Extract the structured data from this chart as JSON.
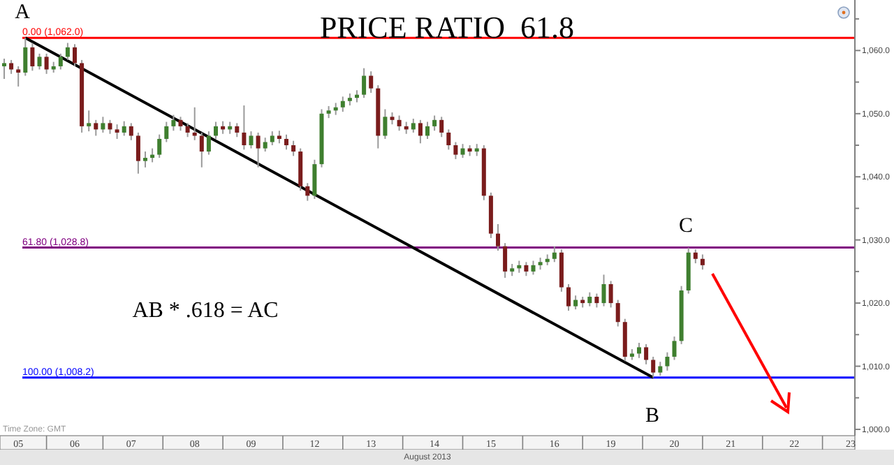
{
  "chart_data": {
    "type": "candlestick",
    "title": "PRICE RATIO  61.8",
    "xlabel": "August 2013",
    "categories": [
      null,
      null,
      "05",
      null,
      null,
      null,
      null,
      null,
      null,
      null,
      "06",
      null,
      null,
      null,
      null,
      null,
      null,
      null,
      "07",
      null,
      null,
      null,
      null,
      null,
      null,
      null,
      null,
      "08",
      null,
      null,
      null,
      null,
      null,
      null,
      null,
      "09",
      null,
      null,
      null,
      null,
      null,
      null,
      null,
      null,
      "12",
      null,
      null,
      null,
      null,
      null,
      null,
      null,
      "13",
      null,
      null,
      null,
      null,
      null,
      null,
      null,
      null,
      "14",
      null,
      null,
      null,
      null,
      null,
      null,
      null,
      "15",
      null,
      null,
      null,
      null,
      null,
      null,
      null,
      null,
      "16",
      null,
      null,
      null,
      null,
      null,
      null,
      null,
      "19",
      null,
      null,
      null,
      null,
      null,
      null,
      null,
      null,
      "20",
      null,
      null,
      null,
      null,
      null,
      null,
      null,
      "21",
      null,
      null,
      null,
      null,
      null,
      null,
      null,
      null,
      "22",
      null,
      null,
      null,
      null,
      null,
      null,
      null,
      "23"
    ],
    "ohlc": [
      [
        1057.5,
        1058.7,
        1055.5,
        1058.0
      ],
      [
        1058,
        1058.5,
        1056.3,
        1057
      ],
      [
        1057,
        1057.5,
        1054.3,
        1056.5
      ],
      [
        1056.5,
        1062,
        1056,
        1060.5
      ],
      [
        1060.5,
        1061.2,
        1056.8,
        1057.5
      ],
      [
        1057.5,
        1059.5,
        1057,
        1059
      ],
      [
        1059,
        1059.5,
        1056.3,
        1057
      ],
      [
        1057,
        1058.2,
        1056.5,
        1057.5
      ],
      [
        1057.5,
        1059.5,
        1057,
        1059
      ],
      [
        1059,
        1061.2,
        1058.5,
        1060.5
      ],
      [
        1060.5,
        1061,
        1057.5,
        1058
      ],
      [
        1058,
        1058.5,
        1047,
        1048
      ],
      [
        1048,
        1050.5,
        1047.2,
        1048.5
      ],
      [
        1048.5,
        1049,
        1046.5,
        1047.5
      ],
      [
        1047.5,
        1049.5,
        1047,
        1048.5
      ],
      [
        1048.5,
        1049,
        1046.8,
        1047.5
      ],
      [
        1047.5,
        1048.3,
        1046,
        1047
      ],
      [
        1047,
        1048.8,
        1046.5,
        1048
      ],
      [
        1048,
        1048.5,
        1045.8,
        1046.5
      ],
      [
        1046.5,
        1047,
        1040.5,
        1042.5
      ],
      [
        1042.5,
        1044,
        1041.5,
        1043
      ],
      [
        1043,
        1044.5,
        1042.3,
        1043.5
      ],
      [
        1043.5,
        1046.7,
        1043,
        1046
      ],
      [
        1046,
        1048.7,
        1045.5,
        1048
      ],
      [
        1048,
        1049.8,
        1047.3,
        1049
      ],
      [
        1049,
        1049.5,
        1047.3,
        1048
      ],
      [
        1048,
        1048.5,
        1046.3,
        1047
      ],
      [
        1047,
        1051,
        1045.8,
        1046.5
      ],
      [
        1046.5,
        1047,
        1041.5,
        1044
      ],
      [
        1044,
        1047.2,
        1043.5,
        1046.5
      ],
      [
        1046.5,
        1048.7,
        1046,
        1048
      ],
      [
        1048,
        1048.8,
        1046.8,
        1047.5
      ],
      [
        1047.5,
        1048.7,
        1046.8,
        1048
      ],
      [
        1048,
        1048.5,
        1046.3,
        1047
      ],
      [
        1047,
        1051.3,
        1044.3,
        1045
      ],
      [
        1045,
        1047.2,
        1044.5,
        1046.5
      ],
      [
        1046.5,
        1047,
        1041.5,
        1044.5
      ],
      [
        1044.5,
        1046.2,
        1044,
        1045.5
      ],
      [
        1045.5,
        1047.2,
        1045,
        1046.5
      ],
      [
        1046.5,
        1047.3,
        1045.3,
        1046
      ],
      [
        1046,
        1046.7,
        1044.3,
        1045
      ],
      [
        1045,
        1045.7,
        1043.3,
        1044
      ],
      [
        1044,
        1044.5,
        1037.8,
        1038.5
      ],
      [
        1038.5,
        1039,
        1036.2,
        1037
      ],
      [
        1037,
        1042.7,
        1036.5,
        1042
      ],
      [
        1042,
        1050.7,
        1041.5,
        1050
      ],
      [
        1050,
        1051.2,
        1049.3,
        1050.5
      ],
      [
        1050.5,
        1051.7,
        1049.8,
        1051
      ],
      [
        1051,
        1052.7,
        1050.3,
        1052
      ],
      [
        1052,
        1053.2,
        1051.3,
        1052.5
      ],
      [
        1052.5,
        1053.7,
        1051.8,
        1053
      ],
      [
        1053,
        1057.2,
        1052.5,
        1056
      ],
      [
        1056,
        1056.7,
        1053.3,
        1054
      ],
      [
        1054,
        1054.5,
        1044.5,
        1046.5
      ],
      [
        1046.5,
        1050.7,
        1046,
        1049.5
      ],
      [
        1049.5,
        1050.2,
        1048.3,
        1049
      ],
      [
        1049,
        1049.7,
        1047.3,
        1048
      ],
      [
        1048,
        1048.7,
        1046.8,
        1047.5
      ],
      [
        1047.5,
        1049.2,
        1047,
        1048.5
      ],
      [
        1048.5,
        1049,
        1045.3,
        1046.5
      ],
      [
        1046.5,
        1048.7,
        1046,
        1048
      ],
      [
        1048,
        1049.7,
        1047.3,
        1049
      ],
      [
        1049,
        1049.5,
        1046.3,
        1047
      ],
      [
        1047,
        1047.5,
        1044.3,
        1045
      ],
      [
        1045,
        1045.5,
        1042.8,
        1043.5
      ],
      [
        1043.5,
        1045.2,
        1043,
        1044.5
      ],
      [
        1044.5,
        1045,
        1043.3,
        1044
      ],
      [
        1044,
        1045.2,
        1043.3,
        1044.5
      ],
      [
        1044.5,
        1045,
        1036.3,
        1037
      ],
      [
        1037,
        1037.5,
        1030.3,
        1031
      ],
      [
        1031,
        1032.5,
        1028.3,
        1029
      ],
      [
        1029,
        1029.5,
        1024,
        1025
      ],
      [
        1025,
        1026.2,
        1024.3,
        1025.5
      ],
      [
        1025.5,
        1026.7,
        1024.8,
        1026
      ],
      [
        1026,
        1026.5,
        1024.3,
        1025
      ],
      [
        1025,
        1026.7,
        1024.5,
        1026
      ],
      [
        1026,
        1027.2,
        1025.3,
        1026.5
      ],
      [
        1026.5,
        1027.7,
        1026,
        1027
      ],
      [
        1027,
        1029,
        1026.5,
        1028
      ],
      [
        1028,
        1028.5,
        1021.8,
        1022.5
      ],
      [
        1022.5,
        1023,
        1018.8,
        1019.5
      ],
      [
        1019.5,
        1021.2,
        1019,
        1020.5
      ],
      [
        1020.5,
        1021,
        1019.3,
        1020
      ],
      [
        1020,
        1021.7,
        1019.5,
        1021
      ],
      [
        1021,
        1021.5,
        1019.3,
        1020
      ],
      [
        1020,
        1024.5,
        1019.5,
        1023
      ],
      [
        1023,
        1023.5,
        1019.3,
        1020
      ],
      [
        1020,
        1020.5,
        1016.3,
        1017
      ],
      [
        1017,
        1017.5,
        1010.8,
        1011.5
      ],
      [
        1011.5,
        1012.7,
        1011,
        1012
      ],
      [
        1012,
        1013.7,
        1011.3,
        1013
      ],
      [
        1013,
        1013.5,
        1010.3,
        1011
      ],
      [
        1011,
        1011.5,
        1008.2,
        1009
      ],
      [
        1009,
        1010.7,
        1008.5,
        1010
      ],
      [
        1010,
        1012.2,
        1009.3,
        1011.5
      ],
      [
        1011.5,
        1014.7,
        1011,
        1014
      ],
      [
        1014,
        1022.7,
        1013.5,
        1022
      ],
      [
        1022,
        1028.8,
        1021.5,
        1028
      ],
      [
        1028,
        1028.5,
        1026.3,
        1027
      ],
      [
        1027,
        1027.7,
        1025.3,
        1026
      ],
      null,
      null,
      null,
      null,
      null,
      null,
      null,
      null,
      null,
      null,
      null,
      null,
      null,
      null,
      null,
      null,
      null,
      null,
      null,
      null,
      null
    ],
    "colors": [
      "#3f7f2f",
      "#7a1c1c",
      "#7a1c1c",
      "#3f7f2f",
      "#7a1c1c",
      "#3f7f2f",
      "#7a1c1c",
      "#3f7f2f",
      "#3f7f2f",
      "#3f7f2f",
      "#7a1c1c",
      "#7a1c1c",
      "#3f7f2f",
      "#7a1c1c",
      "#3f7f2f",
      "#7a1c1c",
      "#7a1c1c",
      "#3f7f2f",
      "#7a1c1c",
      "#7a1c1c",
      "#3f7f2f",
      "#3f7f2f",
      "#3f7f2f",
      "#3f7f2f",
      "#3f7f2f",
      "#7a1c1c",
      "#7a1c1c",
      "#7a1c1c",
      "#7a1c1c",
      "#3f7f2f",
      "#3f7f2f",
      "#7a1c1c",
      "#3f7f2f",
      "#7a1c1c",
      "#7a1c1c",
      "#3f7f2f",
      "#7a1c1c",
      "#3f7f2f",
      "#3f7f2f",
      "#7a1c1c",
      "#7a1c1c",
      "#7a1c1c",
      "#7a1c1c",
      "#7a1c1c",
      "#3f7f2f",
      "#3f7f2f",
      "#3f7f2f",
      "#3f7f2f",
      "#3f7f2f",
      "#3f7f2f",
      "#3f7f2f",
      "#3f7f2f",
      "#7a1c1c",
      "#7a1c1c",
      "#3f7f2f",
      "#7a1c1c",
      "#7a1c1c",
      "#7a1c1c",
      "#3f7f2f",
      "#7a1c1c",
      "#3f7f2f",
      "#3f7f2f",
      "#7a1c1c",
      "#7a1c1c",
      "#7a1c1c",
      "#3f7f2f",
      "#7a1c1c",
      "#3f7f2f",
      "#7a1c1c",
      "#7a1c1c",
      "#7a1c1c",
      "#7a1c1c",
      "#3f7f2f",
      "#3f7f2f",
      "#7a1c1c",
      "#3f7f2f",
      "#3f7f2f",
      "#3f7f2f",
      "#3f7f2f",
      "#7a1c1c",
      "#7a1c1c",
      "#3f7f2f",
      "#7a1c1c",
      "#3f7f2f",
      "#7a1c1c",
      "#3f7f2f",
      "#7a1c1c",
      "#7a1c1c",
      "#7a1c1c",
      "#3f7f2f",
      "#3f7f2f",
      "#7a1c1c",
      "#7a1c1c",
      "#3f7f2f",
      "#3f7f2f",
      "#3f7f2f",
      "#3f7f2f",
      "#3f7f2f",
      "#7a1c1c",
      "#7a1c1c",
      null,
      null,
      null,
      null,
      null,
      null,
      null,
      null,
      null,
      null,
      null,
      null,
      null,
      null,
      null,
      null,
      null,
      null,
      null,
      null,
      null
    ],
    "series": [
      {
        "type": "line",
        "color": "#000000",
        "values": [
          null,
          null,
          null,
          1062.0,
          null,
          null,
          null,
          null,
          null,
          null,
          null,
          null,
          null,
          null,
          null,
          null,
          null,
          null,
          null,
          null,
          null,
          null,
          null,
          null,
          null,
          null,
          null,
          null,
          null,
          null,
          null,
          null,
          null,
          null,
          null,
          null,
          null,
          null,
          null,
          null,
          null,
          null,
          null,
          null,
          null,
          null,
          null,
          null,
          null,
          null,
          null,
          null,
          null,
          null,
          null,
          null,
          null,
          null,
          null,
          null,
          null,
          null,
          null,
          null,
          null,
          null,
          null,
          null,
          null,
          null,
          null,
          null,
          null,
          null,
          null,
          null,
          null,
          null,
          null,
          null,
          null,
          null,
          null,
          null,
          null,
          null,
          null,
          null,
          null,
          null,
          null,
          null,
          1008.2,
          null,
          null,
          null,
          null,
          null,
          null,
          null,
          null,
          null,
          null,
          null,
          null,
          null,
          null,
          null,
          null,
          null,
          null,
          null,
          null,
          null,
          null,
          null,
          null,
          null,
          null,
          null,
          null
        ]
      }
    ],
    "ylim": [
      999,
      1068
    ],
    "yticks": [
      {
        "value": 1000,
        "label": "1,000.0"
      },
      {
        "value": 1005,
        "label": null
      },
      {
        "value": 1010,
        "label": "1,010.0"
      },
      {
        "value": 1015,
        "label": null
      },
      {
        "value": 1020,
        "label": "1,020.0"
      },
      {
        "value": 1025,
        "label": null
      },
      {
        "value": 1030,
        "label": "1,030.0"
      },
      {
        "value": 1035,
        "label": null
      },
      {
        "value": 1040,
        "label": "1,040.0"
      },
      {
        "value": 1045,
        "label": null
      },
      {
        "value": 1050,
        "label": "1,050.0"
      },
      {
        "value": 1055,
        "label": null
      },
      {
        "value": 1060,
        "label": "1,060.0"
      },
      {
        "value": 1065,
        "label": null
      }
    ],
    "ref_lines": [
      {
        "axis": "y",
        "value": 1062.0,
        "label": "0.00 (1,062.0)",
        "color": "#ff0000"
      },
      {
        "axis": "y",
        "value": 1028.8,
        "label": "61.80 (1,028.8)",
        "color": "#800080"
      },
      {
        "axis": "y",
        "value": 1008.2,
        "label": "100.00 (1,008.2)",
        "color": "#0000ff"
      }
    ],
    "annotations": [
      "A",
      "B",
      "C",
      "AB  *  .618  =  AC",
      "Time Zone: GMT"
    ],
    "grid": false
  }
}
